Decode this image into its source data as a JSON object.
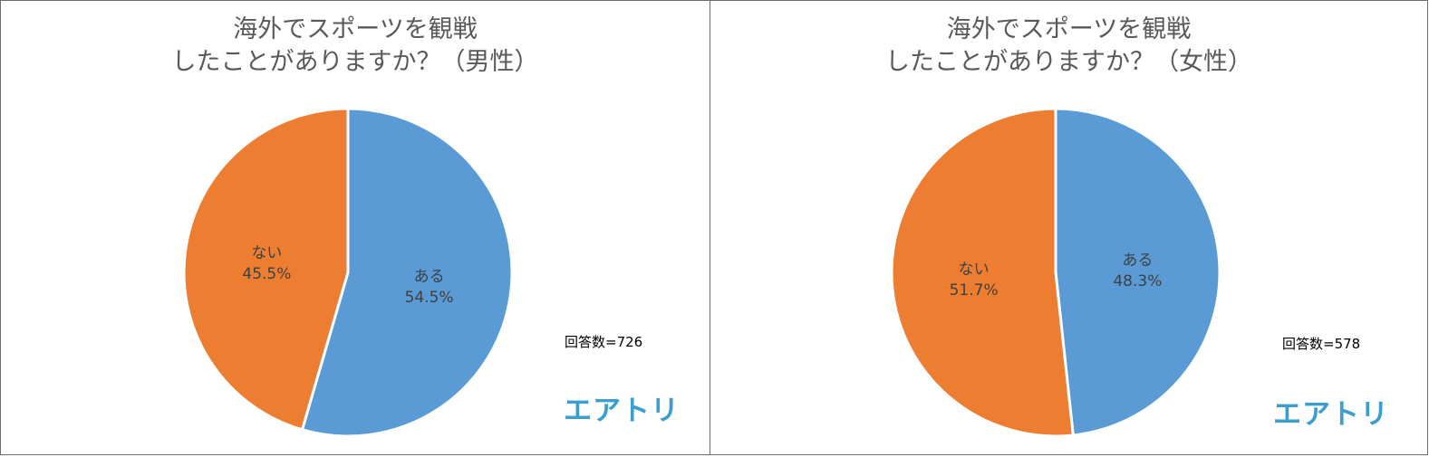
{
  "colors": {
    "yes": "#5b9bd5",
    "no": "#ed7d31",
    "logo": "#3b9ecf"
  },
  "logo_text": "エアトリ",
  "chart_data": [
    {
      "type": "pie",
      "title_line1": "海外でスポーツを観戦",
      "title_line2": "したことがありますか？（男性）",
      "respondents": "回答数=726",
      "slices": [
        {
          "label": "ある",
          "value": 54.5,
          "value_label": "54.5%",
          "color": "#5b9bd5"
        },
        {
          "label": "ない",
          "value": 45.5,
          "value_label": "45.5%",
          "color": "#ed7d31"
        }
      ]
    },
    {
      "type": "pie",
      "title_line1": "海外でスポーツを観戦",
      "title_line2": "したことがありますか？（女性）",
      "respondents": "回答数=578",
      "slices": [
        {
          "label": "ある",
          "value": 48.3,
          "value_label": "48.3%",
          "color": "#5b9bd5"
        },
        {
          "label": "ない",
          "value": 51.7,
          "value_label": "51.7%",
          "color": "#ed7d31"
        }
      ]
    }
  ]
}
